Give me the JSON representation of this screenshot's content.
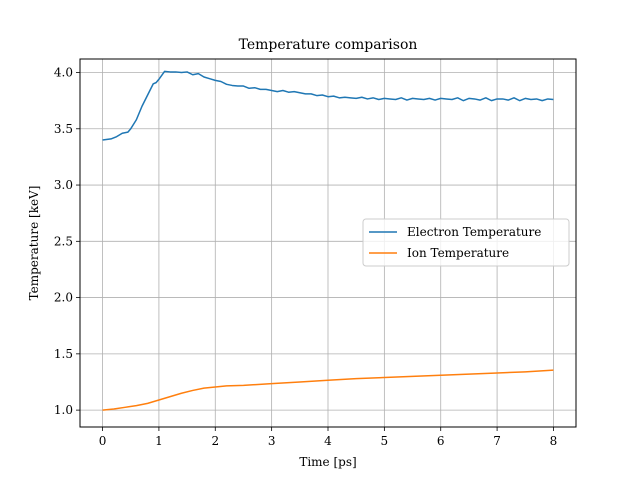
{
  "chart_data": {
    "type": "line",
    "title": "Temperature comparison",
    "xlabel": "Time [ps]",
    "ylabel": "Temperature [keV]",
    "xlim": [
      -0.4,
      8.4
    ],
    "ylim": [
      0.85,
      4.12
    ],
    "xticks": [
      0,
      1,
      2,
      3,
      4,
      5,
      6,
      7,
      8
    ],
    "xtick_labels": [
      "0",
      "1",
      "2",
      "3",
      "4",
      "5",
      "6",
      "7",
      "8"
    ],
    "yticks": [
      1.0,
      1.5,
      2.0,
      2.5,
      3.0,
      3.5,
      4.0
    ],
    "ytick_labels": [
      "1.0",
      "1.5",
      "2.0",
      "2.5",
      "3.0",
      "3.5",
      "4.0"
    ],
    "grid": true,
    "legend_position": "center-right",
    "series": [
      {
        "name": "Electron Temperature",
        "color": "#1f77b4",
        "x": [
          0,
          0.15,
          0.25,
          0.35,
          0.45,
          0.5,
          0.6,
          0.7,
          0.8,
          0.9,
          0.95,
          1.0,
          1.1,
          1.2,
          1.3,
          1.4,
          1.5,
          1.6,
          1.7,
          1.8,
          1.9,
          2.0,
          2.1,
          2.2,
          2.3,
          2.4,
          2.5,
          2.6,
          2.7,
          2.8,
          2.9,
          3.0,
          3.1,
          3.2,
          3.3,
          3.4,
          3.5,
          3.6,
          3.7,
          3.8,
          3.9,
          4.0,
          4.1,
          4.2,
          4.3,
          4.4,
          4.5,
          4.6,
          4.7,
          4.8,
          4.9,
          5.0,
          5.1,
          5.2,
          5.3,
          5.4,
          5.5,
          5.6,
          5.7,
          5.8,
          5.9,
          6.0,
          6.1,
          6.2,
          6.3,
          6.4,
          6.5,
          6.6,
          6.7,
          6.8,
          6.9,
          7.0,
          7.1,
          7.2,
          7.3,
          7.4,
          7.5,
          7.6,
          7.7,
          7.8,
          7.9,
          8.0
        ],
        "y": [
          3.4,
          3.41,
          3.43,
          3.46,
          3.47,
          3.5,
          3.58,
          3.7,
          3.8,
          3.9,
          3.91,
          3.94,
          4.01,
          4.005,
          4.005,
          4.0,
          4.005,
          3.98,
          3.99,
          3.96,
          3.945,
          3.93,
          3.92,
          3.895,
          3.885,
          3.88,
          3.88,
          3.86,
          3.865,
          3.85,
          3.85,
          3.84,
          3.83,
          3.84,
          3.825,
          3.83,
          3.82,
          3.81,
          3.81,
          3.795,
          3.8,
          3.785,
          3.79,
          3.775,
          3.78,
          3.775,
          3.77,
          3.78,
          3.765,
          3.775,
          3.76,
          3.77,
          3.765,
          3.76,
          3.775,
          3.755,
          3.77,
          3.765,
          3.76,
          3.77,
          3.755,
          3.77,
          3.765,
          3.76,
          3.775,
          3.75,
          3.77,
          3.765,
          3.755,
          3.775,
          3.75,
          3.765,
          3.765,
          3.755,
          3.775,
          3.75,
          3.77,
          3.76,
          3.765,
          3.75,
          3.765,
          3.76
        ]
      },
      {
        "name": "Ion Temperature",
        "color": "#ff7f0e",
        "x": [
          0,
          0.2,
          0.4,
          0.6,
          0.8,
          1.0,
          1.2,
          1.4,
          1.6,
          1.8,
          2.0,
          2.2,
          2.5,
          3.0,
          3.5,
          4.0,
          4.5,
          5.0,
          5.5,
          6.0,
          6.5,
          7.0,
          7.5,
          8.0
        ],
        "y": [
          1.0,
          1.01,
          1.025,
          1.04,
          1.06,
          1.09,
          1.12,
          1.15,
          1.175,
          1.195,
          1.205,
          1.215,
          1.22,
          1.235,
          1.25,
          1.265,
          1.28,
          1.29,
          1.3,
          1.31,
          1.32,
          1.33,
          1.34,
          1.355
        ]
      }
    ]
  }
}
